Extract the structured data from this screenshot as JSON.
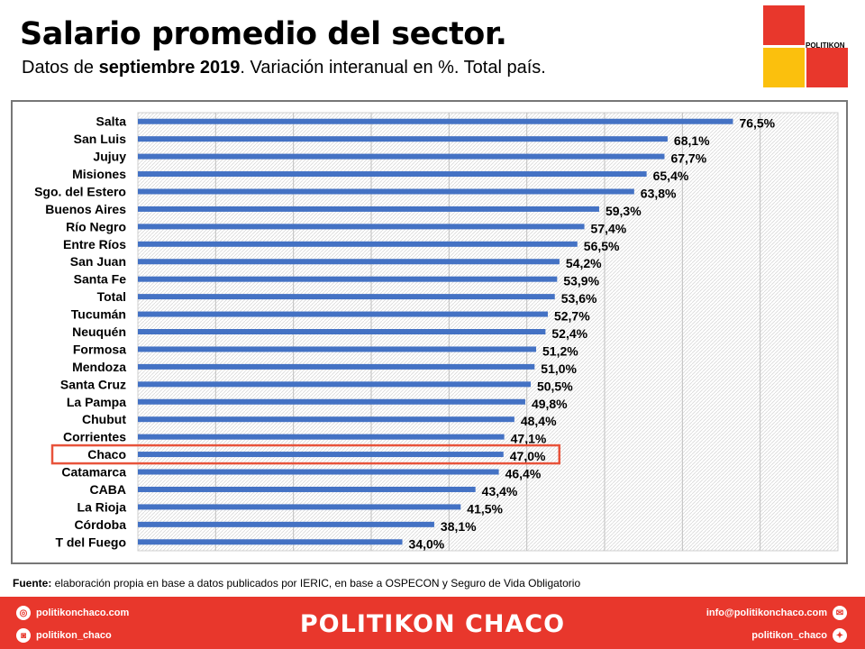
{
  "header": {
    "title": "Salario promedio del sector.",
    "subtitle_pre": "Datos de ",
    "subtitle_bold": "septiembre 2019",
    "subtitle_post": ". Variación interanual en %. Total país."
  },
  "logo": {
    "text": "POLITIKON",
    "colors": [
      "#e8372c",
      "#fbc00d"
    ]
  },
  "chart_data": {
    "type": "bar",
    "orientation": "horizontal",
    "title": "Salario promedio del sector.",
    "xlabel": "",
    "ylabel": "",
    "xlim": [
      0,
      90
    ],
    "grid": true,
    "bar_color": "#4472c4",
    "highlight_color": "#e8533b",
    "highlight_category": "Chaco",
    "categories": [
      "Salta",
      "San Luis",
      "Jujuy",
      "Misiones",
      "Sgo. del Estero",
      "Buenos Aires",
      "Río Negro",
      "Entre Ríos",
      "San Juan",
      "Santa Fe",
      "Total",
      "Tucumán",
      "Neuquén",
      "Formosa",
      "Mendoza",
      "Santa Cruz",
      "La Pampa",
      "Chubut",
      "Corrientes",
      "Chaco",
      "Catamarca",
      "CABA",
      "La Rioja",
      "Córdoba",
      "T del Fuego"
    ],
    "values": [
      76.5,
      68.1,
      67.7,
      65.4,
      63.8,
      59.3,
      57.4,
      56.5,
      54.2,
      53.9,
      53.6,
      52.7,
      52.4,
      51.2,
      51.0,
      50.5,
      49.8,
      48.4,
      47.1,
      47.0,
      46.4,
      43.4,
      41.5,
      38.1,
      34.0
    ],
    "labels": [
      "76,5%",
      "68,1%",
      "67,7%",
      "65,4%",
      "63,8%",
      "59,3%",
      "57,4%",
      "56,5%",
      "54,2%",
      "53,9%",
      "53,6%",
      "52,7%",
      "52,4%",
      "51,2%",
      "51,0%",
      "50,5%",
      "49,8%",
      "48,4%",
      "47,1%",
      "47,0%",
      "46,4%",
      "43,4%",
      "41,5%",
      "38,1%",
      "34,0%"
    ]
  },
  "source": {
    "label": "Fuente:",
    "text": " elaboración propia en base a datos publicados por IERIC, en base a OSPECON y Seguro de Vida Obligatorio"
  },
  "footer": {
    "brand": "POLITIKON CHACO",
    "website": "politikonchaco.com",
    "instagram": "politikon_chaco",
    "email": "info@politikonchaco.com",
    "twitter": "politikon_chaco"
  }
}
